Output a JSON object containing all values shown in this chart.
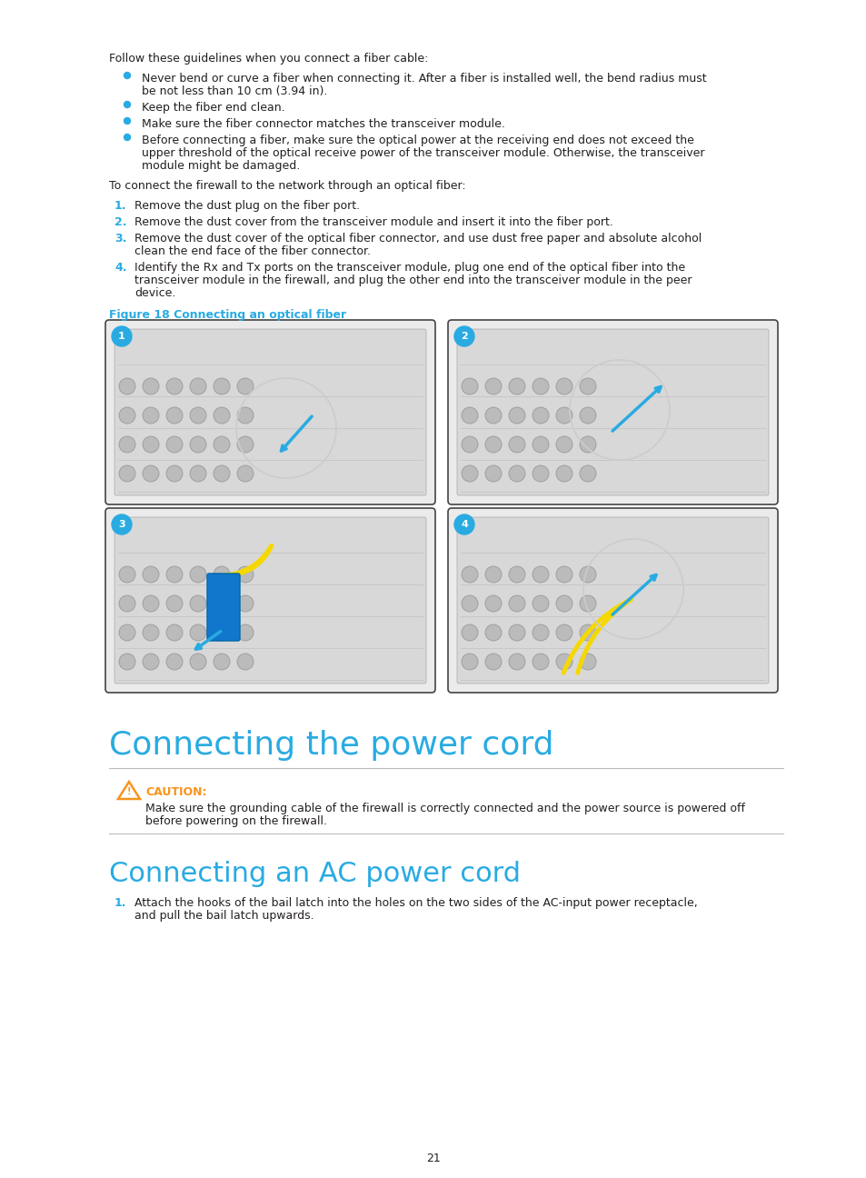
{
  "bg_color": "#ffffff",
  "text_color": "#231f20",
  "cyan_color": "#29abe2",
  "caution_color": "#f7941d",
  "body_font_size": 9.0,
  "title_font_size": 26,
  "subtitle_font_size": 22,
  "figure_caption_font_size": 9.0,
  "page_number": "21",
  "lm": 120,
  "rm": 862,
  "intro_text": "Follow these guidelines when you connect a fiber cable:",
  "bullets": [
    "Never bend or curve a fiber when connecting it. After a fiber is installed well, the bend radius must\nbe not less than 10 cm (3.94 in).",
    "Keep the fiber end clean.",
    "Make sure the fiber connector matches the transceiver module.",
    "Before connecting a fiber, make sure the optical power at the receiving end does not exceed the\nupper threshold of the optical receive power of the transceiver module. Otherwise, the transceiver\nmodule might be damaged."
  ],
  "to_connect_text": "To connect the firewall to the network through an optical fiber:",
  "numbered_steps": [
    "Remove the dust plug on the fiber port.",
    "Remove the dust cover from the transceiver module and insert it into the fiber port.",
    "Remove the dust cover of the optical fiber connector, and use dust free paper and absolute alcohol\nclean the end face of the fiber connector.",
    "Identify the Rx and Tx ports on the transceiver module, plug one end of the optical fiber into the\ntransceiver module in the firewall, and plug the other end into the transceiver module in the peer\ndevice."
  ],
  "figure_caption": "Figure 18 Connecting an optical fiber",
  "section_title": "Connecting the power cord",
  "caution_label": "CAUTION:",
  "caution_text": "Make sure the grounding cable of the firewall is correctly connected and the power source is powered off\nbefore powering on the firewall.",
  "subsection_title": "Connecting an AC power cord",
  "ac_step1": "Attach the hooks of the bail latch into the holes on the two sides of the AC-input power receptacle,\nand pull the bail latch upwards."
}
